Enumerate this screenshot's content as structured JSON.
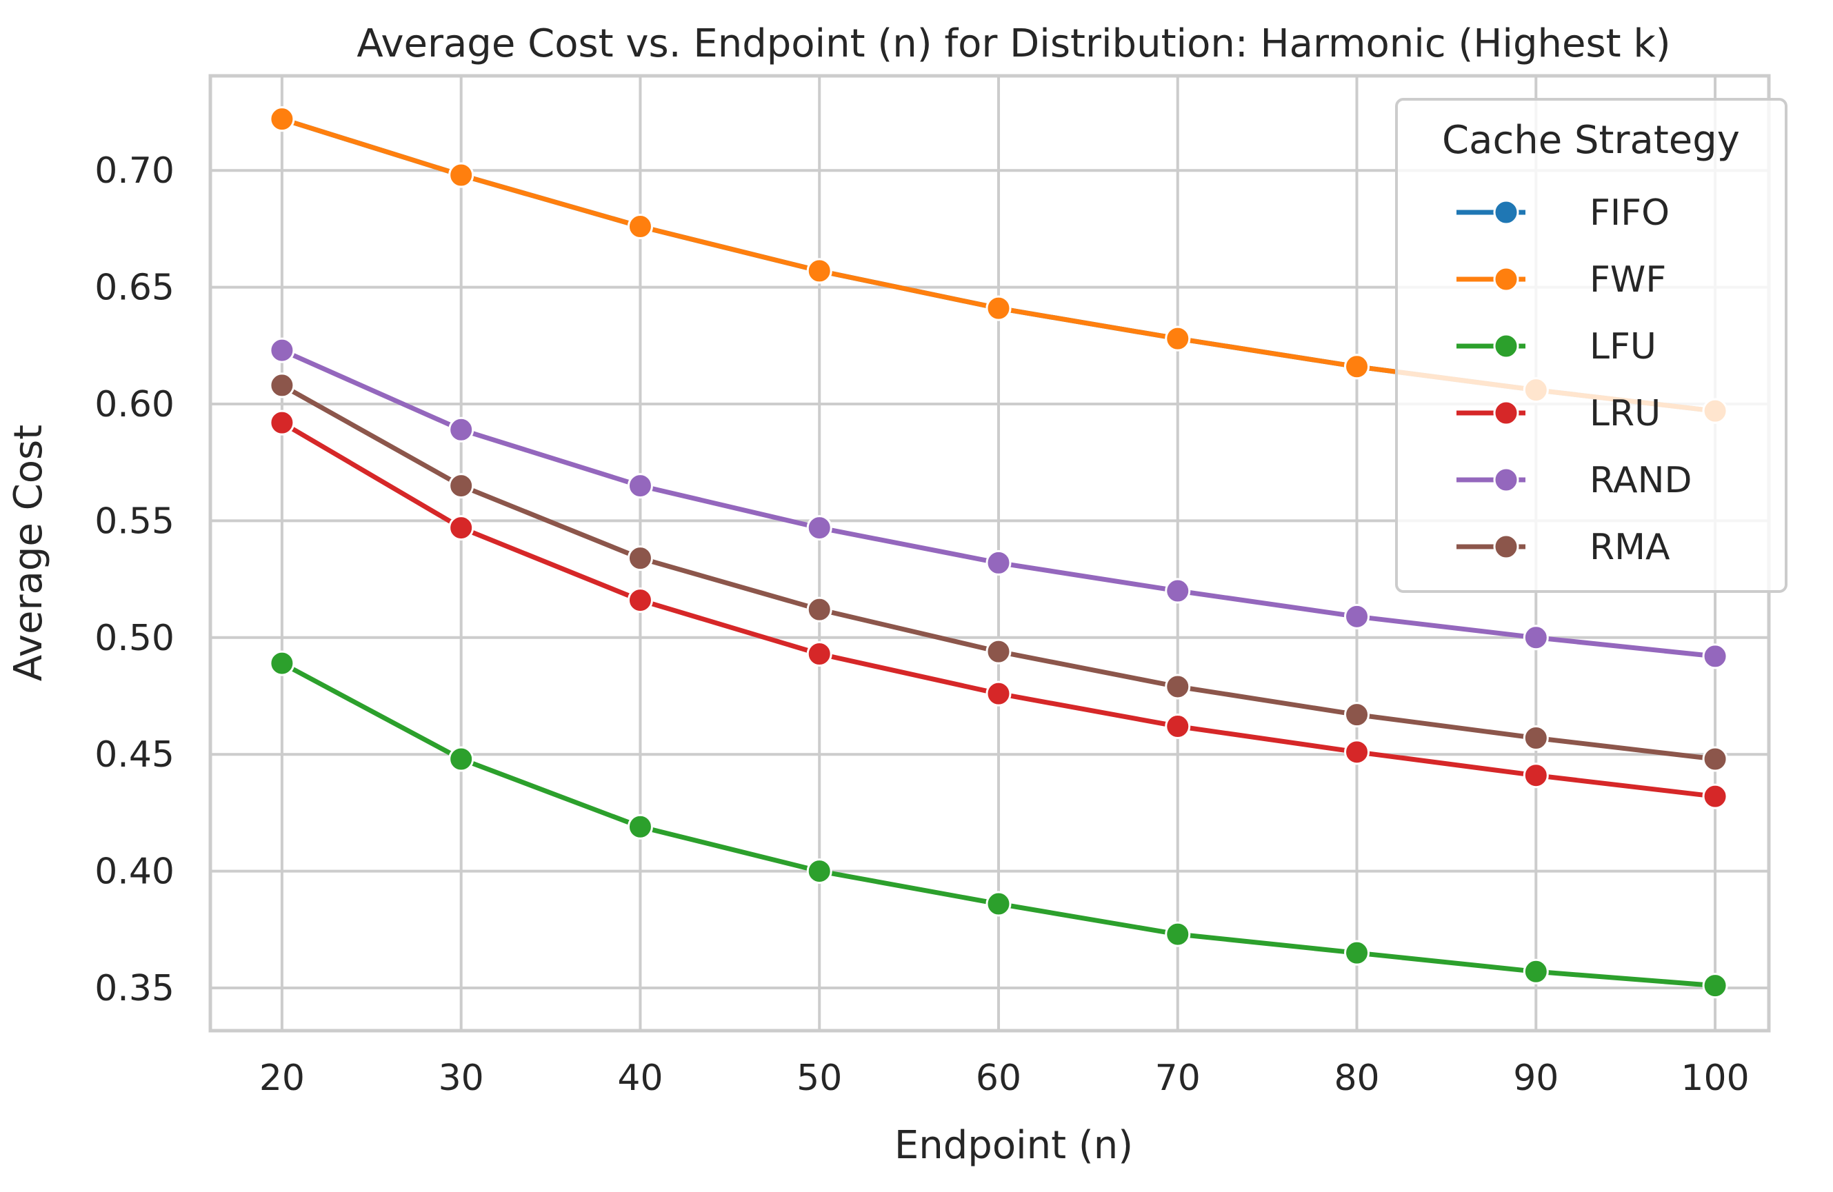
{
  "chart_data": {
    "type": "line",
    "title": "Average Cost vs. Endpoint (n) for Distribution: Harmonic (Highest k)",
    "xlabel": "Endpoint (n)",
    "ylabel": "Average Cost",
    "x": [
      20,
      30,
      40,
      50,
      60,
      70,
      80,
      90,
      100
    ],
    "xlim": [
      16,
      103
    ],
    "ylim": [
      0.3317,
      0.7405
    ],
    "xticks": [
      "20",
      "30",
      "40",
      "50",
      "60",
      "70",
      "80",
      "90",
      "100"
    ],
    "yticks": [
      "0.35",
      "0.40",
      "0.45",
      "0.50",
      "0.55",
      "0.60",
      "0.65",
      "0.70"
    ],
    "grid": true,
    "legend": {
      "title": "Cache Strategy",
      "placement": "top-right"
    },
    "series": [
      {
        "name": "FIFO",
        "color": "#1f77b4",
        "values": [
          0.722,
          0.698,
          0.676,
          0.657,
          0.641,
          0.628,
          0.616,
          0.606,
          0.597
        ]
      },
      {
        "name": "FWF",
        "color": "#ff7f0e",
        "values": [
          0.722,
          0.698,
          0.676,
          0.657,
          0.641,
          0.628,
          0.616,
          0.606,
          0.597
        ]
      },
      {
        "name": "LFU",
        "color": "#2ca02c",
        "values": [
          0.489,
          0.448,
          0.419,
          0.4,
          0.386,
          0.373,
          0.365,
          0.357,
          0.351
        ]
      },
      {
        "name": "LRU",
        "color": "#d62728",
        "values": [
          0.592,
          0.547,
          0.516,
          0.493,
          0.476,
          0.462,
          0.451,
          0.441,
          0.432
        ]
      },
      {
        "name": "RAND",
        "color": "#9467bd",
        "values": [
          0.623,
          0.589,
          0.565,
          0.547,
          0.532,
          0.52,
          0.509,
          0.5,
          0.492
        ]
      },
      {
        "name": "RMA",
        "color": "#8c564b",
        "values": [
          0.608,
          0.565,
          0.534,
          0.512,
          0.494,
          0.479,
          0.467,
          0.457,
          0.448
        ]
      }
    ]
  }
}
